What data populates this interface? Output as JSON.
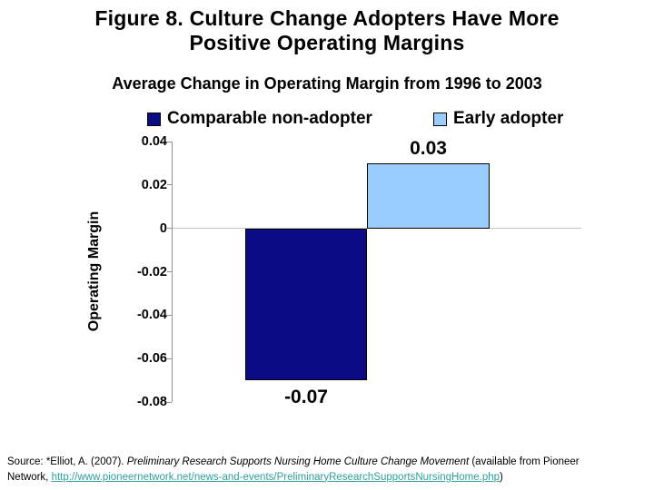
{
  "slide": {
    "title": "Figure 8. Culture Change Adopters Have More Positive Operating Margins",
    "subtitle": "Average Change in Operating Margin from 1996 to 2003"
  },
  "chart_data": {
    "type": "bar",
    "title": "Average Change in Operating Margin from 1996 to 2003",
    "categories": [
      "Comparable non-adopter",
      "Early adopter"
    ],
    "values": [
      -0.07,
      0.03
    ],
    "data_labels": [
      "-0.07",
      "0.03"
    ],
    "xlabel": "",
    "ylabel": "Operating Margin",
    "ylim": [
      -0.08,
      0.04
    ],
    "ytick_interval": 0.02,
    "yticks": [
      "0.04",
      "0.02",
      "0",
      "-0.02",
      "-0.04",
      "-0.06",
      "-0.08"
    ],
    "grid": false,
    "legend_position": "top",
    "legend": [
      {
        "label": "Comparable non-adopter",
        "color": "#0B0B84"
      },
      {
        "label": "Early adopter",
        "color": "#99CCFF"
      }
    ]
  },
  "colors": {
    "non_adopter_bar": "#0B0B84",
    "early_adopter_bar": "#99CCFF",
    "link_teal": "#2E9E9E",
    "axis_gray": "#8F8F8F",
    "zero_line_gray": "#C4C4C4"
  },
  "source": {
    "prefix": "Source: *Elliot, A. (2007). ",
    "italic_title": "Preliminary Research Supports Nursing Home Culture Change Movement",
    "mid": " (available from Pioneer",
    "line2_prefix": "Network, ",
    "link_text": "http://www.pioneernetwork.net/news-and-events/PreliminaryResearchSupportsNursingHome.php",
    "suffix": ")"
  }
}
